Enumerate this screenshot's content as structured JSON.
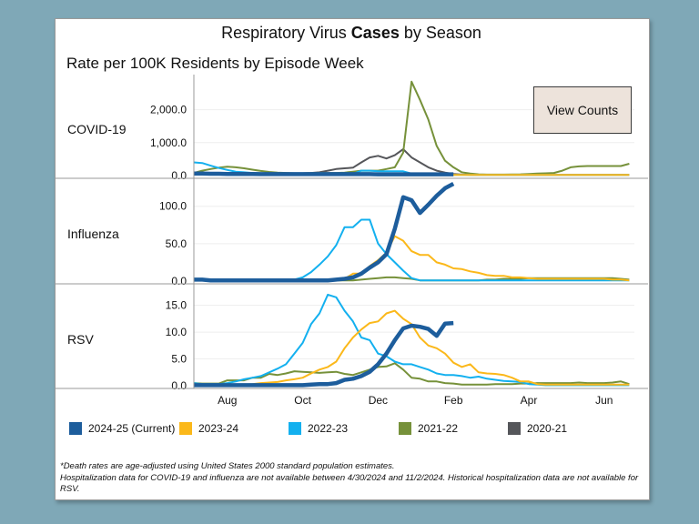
{
  "header": {
    "title_prefix": "Respiratory Virus ",
    "title_bold": "Cases",
    "title_suffix": " by Season",
    "subtitle": "Rate per 100K Residents by Episode Week"
  },
  "view_counts_label": "View Counts",
  "legend": [
    {
      "label": "2024-25 (Current)",
      "color": "#1d5d9c"
    },
    {
      "label": "2023-24",
      "color": "#fbb81a"
    },
    {
      "label": "2022-23",
      "color": "#13b0ef"
    },
    {
      "label": "2021-22",
      "color": "#76913a"
    },
    {
      "label": "2020-21",
      "color": "#55565a"
    }
  ],
  "notes": [
    "*Death rates are age-adjusted using United States 2000 standard population estimates.",
    "Hospitalization data for COVID-19 and influenza are not available between 4/30/2024 and 11/2/2024. Historical hospitalization data are not available for RSV."
  ],
  "chart_data": {
    "type": "line",
    "x_ticks": [
      {
        "week": 5,
        "label": "Aug"
      },
      {
        "week": 14,
        "label": "Oct"
      },
      {
        "week": 23,
        "label": "Dec"
      },
      {
        "week": 32,
        "label": "Feb"
      },
      {
        "week": 41,
        "label": "Apr"
      },
      {
        "week": 50,
        "label": "Jun"
      }
    ],
    "x_range": [
      1,
      53
    ],
    "grid": true,
    "legend_position": "bottom",
    "panels": [
      {
        "label": "COVID-19",
        "ylim": [
          0,
          2900
        ],
        "y_ticks": [
          {
            "value": 0,
            "label": "0.0"
          },
          {
            "value": 1000,
            "label": "1,000.0"
          },
          {
            "value": 2000,
            "label": "2,000.0"
          }
        ],
        "series": {
          "2020-21": [
            40,
            40,
            40,
            40,
            40,
            40,
            40,
            40,
            40,
            40,
            40,
            50,
            60,
            70,
            80,
            100,
            150,
            200,
            220,
            240,
            400,
            550,
            600,
            520,
            620,
            800,
            550,
            400,
            250,
            150,
            90,
            50,
            30,
            20,
            20,
            20,
            20,
            20,
            20,
            20,
            20,
            20,
            20,
            20,
            20,
            20,
            20,
            20,
            20,
            20,
            20,
            20,
            20
          ],
          "2021-22": [
            80,
            150,
            200,
            240,
            270,
            250,
            220,
            180,
            140,
            110,
            90,
            80,
            70,
            70,
            75,
            80,
            80,
            80,
            90,
            120,
            150,
            150,
            150,
            200,
            250,
            700,
            2850,
            2300,
            1700,
            900,
            450,
            250,
            100,
            60,
            40,
            30,
            30,
            30,
            35,
            40,
            50,
            60,
            70,
            80,
            150,
            250,
            280,
            290,
            290,
            290,
            290,
            290,
            360
          ],
          "2022-23": [
            400,
            380,
            300,
            230,
            170,
            120,
            100,
            80,
            70,
            65,
            60,
            60,
            55,
            50,
            50,
            50,
            50,
            50,
            50,
            50,
            150,
            150,
            130,
            130,
            130,
            130,
            60,
            40,
            30,
            25,
            20,
            20,
            20,
            20,
            20,
            20,
            20,
            20,
            20,
            20,
            20,
            20,
            20,
            20,
            20,
            20,
            20,
            20,
            20,
            20,
            20,
            20,
            20
          ],
          "2023-24": [
            null,
            null,
            null,
            null,
            null,
            null,
            null,
            null,
            null,
            null,
            null,
            null,
            null,
            null,
            null,
            null,
            null,
            null,
            null,
            null,
            null,
            null,
            null,
            null,
            null,
            null,
            null,
            null,
            null,
            null,
            20,
            20,
            20,
            20,
            20,
            20,
            20,
            20,
            20,
            20,
            20,
            20,
            20,
            20,
            20,
            20,
            20,
            20,
            20,
            20,
            20,
            20,
            20
          ],
          "2024-25 (Current)": [
            60,
            60,
            55,
            55,
            50,
            50,
            50,
            50,
            45,
            45,
            45,
            45,
            45,
            45,
            45,
            45,
            45,
            45,
            45,
            45,
            45,
            45,
            40,
            40,
            40,
            40,
            40,
            40,
            40,
            40,
            40,
            40
          ]
        }
      },
      {
        "label": "Influenza",
        "ylim": [
          0,
          130
        ],
        "y_ticks": [
          {
            "value": 0,
            "label": "0.0"
          },
          {
            "value": 50,
            "label": "50.0"
          },
          {
            "value": 100,
            "label": "100.0"
          }
        ],
        "series": {
          "2021-22": [
            1,
            1,
            1,
            1,
            1,
            1,
            1,
            1,
            1,
            1,
            1,
            1,
            1,
            1,
            1,
            1,
            1,
            1,
            1,
            1,
            2,
            3,
            4,
            5,
            5,
            4,
            3,
            1,
            1,
            1,
            1,
            1,
            1,
            1,
            1,
            2,
            2,
            3,
            3,
            3,
            4,
            4,
            4,
            4,
            4,
            4,
            4,
            4,
            4,
            4,
            4,
            3,
            2
          ],
          "2022-23": [
            1,
            1,
            1,
            1,
            1,
            1,
            1,
            1,
            1,
            1,
            1,
            1,
            2,
            5,
            12,
            22,
            33,
            48,
            72,
            72,
            82,
            82,
            50,
            36,
            25,
            14,
            4,
            1,
            1,
            1,
            1,
            1,
            1,
            1,
            1,
            1,
            1,
            1,
            1,
            1,
            1,
            1,
            1,
            1,
            1,
            1,
            1,
            1,
            1,
            1,
            1,
            1,
            1
          ],
          "2023-24": [
            1,
            1,
            1,
            1,
            1,
            1,
            1,
            1,
            1,
            1,
            1,
            1,
            1,
            1,
            1,
            1,
            1,
            2,
            3,
            10,
            10,
            20,
            28,
            38,
            60,
            54,
            40,
            35,
            35,
            25,
            22,
            17,
            16,
            13,
            11,
            8,
            7,
            7,
            5,
            5,
            4,
            3,
            3,
            3,
            3,
            3,
            3,
            3,
            3,
            3,
            2,
            2,
            1
          ],
          "2024-25 (Current)": [
            2,
            2,
            1,
            1,
            1,
            1,
            1,
            1,
            1,
            1,
            1,
            1,
            1,
            1,
            1,
            1,
            1,
            2,
            3,
            5,
            10,
            18,
            25,
            36,
            70,
            112,
            108,
            91,
            102,
            114,
            124,
            130
          ]
        }
      },
      {
        "label": "RSV",
        "ylim": [
          0,
          18
        ],
        "y_ticks": [
          {
            "value": 0,
            "label": "0.0"
          },
          {
            "value": 5,
            "label": "5.0"
          },
          {
            "value": 10,
            "label": "10.0"
          },
          {
            "value": 15,
            "label": "15.0"
          }
        ],
        "series": {
          "2021-22": [
            0.5,
            0.4,
            0.4,
            0.4,
            1,
            1,
            1,
            1.5,
            1.5,
            2.2,
            2,
            2.3,
            2.7,
            2.6,
            2.5,
            2.4,
            2.5,
            2.6,
            2.2,
            2,
            2.5,
            3,
            3.5,
            3.6,
            4.2,
            3,
            1.5,
            1.3,
            0.8,
            0.8,
            0.5,
            0.4,
            0.2,
            0.2,
            0.2,
            0.2,
            0.3,
            0.3,
            0.3,
            0.4,
            0.4,
            0.5,
            0.5,
            0.5,
            0.5,
            0.5,
            0.6,
            0.5,
            0.5,
            0.5,
            0.6,
            0.8,
            0.3
          ],
          "2022-23": [
            0.5,
            0.3,
            0.3,
            0.3,
            0.5,
            0.8,
            1.2,
            1.5,
            1.8,
            2.5,
            3.2,
            4,
            6,
            8,
            11.5,
            13.5,
            17,
            16.5,
            14,
            12,
            9,
            8.5,
            6,
            5.5,
            4.5,
            4,
            4,
            3.5,
            3,
            2.3,
            2,
            2,
            1.8,
            1.5,
            1.7,
            1.3,
            1.1,
            0.9,
            0.8,
            0.7,
            0.3,
            0.2,
            0.1,
            0.1,
            0.1,
            0.1,
            0.1,
            0.1,
            0.1,
            0.1,
            0.1,
            0.1,
            0.1
          ],
          "2023-24": [
            0.2,
            0.2,
            0.2,
            0.2,
            0.2,
            0.2,
            0.2,
            0.3,
            0.5,
            0.6,
            0.7,
            1,
            1.2,
            1.5,
            2.3,
            3,
            3.5,
            4.5,
            7,
            9,
            10.5,
            11.7,
            12,
            13.5,
            14,
            12.5,
            11.5,
            9,
            7.5,
            7,
            6,
            4.3,
            3.5,
            4,
            2.5,
            2.3,
            2.2,
            2,
            1.5,
            0.8,
            0.8,
            0.3,
            0.2,
            0.2,
            0.2,
            0.2,
            0.2,
            0.2,
            0.2,
            0.2,
            0.2,
            0.2,
            0.2
          ],
          "2024-25 (Current)": [
            0.1,
            0.1,
            0.1,
            0.1,
            0.1,
            0.1,
            0.1,
            0.1,
            0.1,
            0.1,
            0.1,
            0.1,
            0.1,
            0.1,
            0.2,
            0.3,
            0.3,
            0.5,
            1.1,
            1.3,
            1.8,
            2.6,
            4,
            6,
            8.5,
            10.7,
            11.2,
            11,
            10.6,
            9.3,
            11.6,
            11.7
          ]
        }
      }
    ]
  }
}
